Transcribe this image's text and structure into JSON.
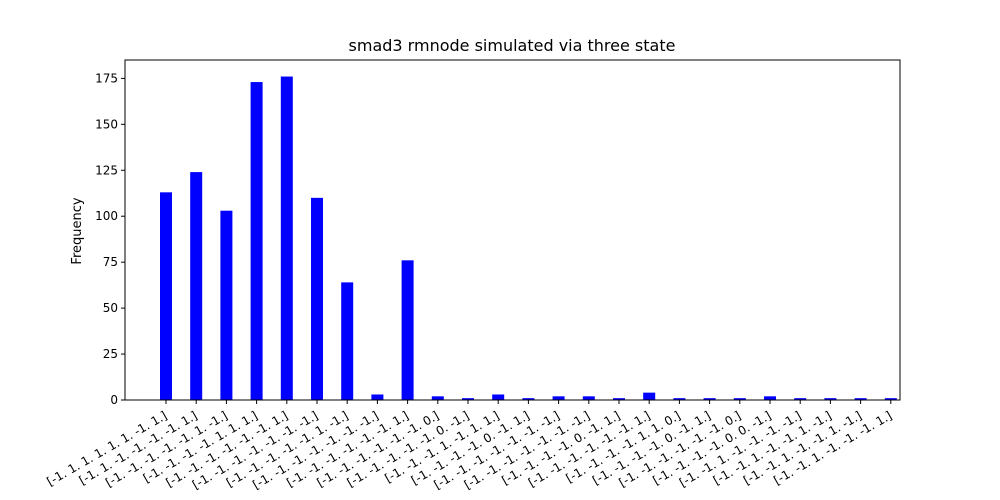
{
  "chart_data": {
    "type": "bar",
    "title": "smad3 rmnode simulated via three state",
    "xlabel": "",
    "ylabel": "Frequency",
    "ylim": [
      0,
      185
    ],
    "yticks": [
      0,
      25,
      50,
      75,
      100,
      125,
      150,
      175
    ],
    "bar_color": "#0000ff",
    "grid": false,
    "categories": [
      "[-1.  1.  1.  1.  1.  1. -1.  1.]",
      "[-1.  1. -1. -1. -1. -1.  1.]",
      "[-1. -1. -1. -1. -1.  1. -1.]",
      "[-1. -1. -1. -1.  1.  1.  1.]",
      "[-1. -1. -1. -1. -1. -1.  1.]",
      "[-1. -1. -1. -1. -1. -1. -1.]",
      "[-1. -1. -1. -1. -1.  1. -1.]",
      "[-1. -1. -1. -1. -1. -1. -1.]",
      "[-1. -1. -1. -1. -1. -1.  1.]",
      "[-1. -1. -1. -1. -1. -1.  0.]",
      "[-1. -1. -1. -1. -1.  0. -1.]",
      "[-1. -1. -1.  1. -1.  1.  1.]",
      "[-1. -1. -1. -1.  0. -1.  1.]",
      "[-1. -1. -1. -1. -1. -1. -1.]",
      "[-1. -1. -1. -1. -1. -1. -1.]",
      "[-1. -1. -1. -1.  0. -1.  1.]",
      "[-1. -1. -1. -1. -1. -1.  1.]",
      "[-1. -1. -1. -1.  1.  1.  0.]",
      "[-1. -1. -1. -1.  0. -1.  1.]",
      "[-1. -1. -1. -1. -1. -1.  0.]",
      "[-1. -1. -1. -1.  0.  0. -1.]",
      "[-1. -1.  1. -1. -1. -1. -1.]",
      "[-1. -1.  1. -1. -1.  1. -1.]",
      "[-1. -1.  1. -1. -1.  1. -1.]",
      "[-1. -1.  1. -1. -1. -1.  1.]"
    ],
    "values": [
      113,
      124,
      103,
      173,
      176,
      110,
      64,
      3,
      76,
      2,
      1,
      3,
      1,
      2,
      2,
      1,
      4,
      1,
      1,
      1,
      2,
      1,
      1,
      1,
      1
    ]
  }
}
